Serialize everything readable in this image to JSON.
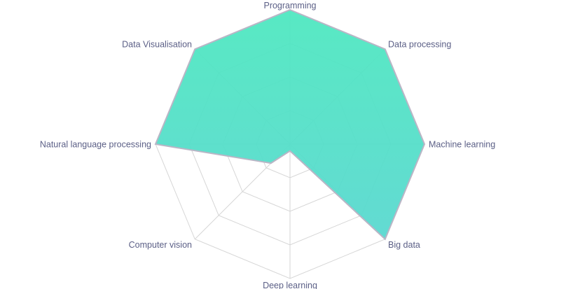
{
  "chart_data": {
    "type": "radar",
    "title": "",
    "categories": [
      "Programming",
      "Data processing",
      "Machine learning",
      "Big data",
      "Deep learning",
      "Computer vision",
      "Natural language processing",
      "Data Visualisation"
    ],
    "series": [
      {
        "values": [
          100,
          100,
          100,
          100,
          5,
          20,
          100,
          100
        ],
        "color_top": "#4fe8c0",
        "color_bottom": "#5ad8d0"
      }
    ],
    "range": [
      0,
      100
    ],
    "grid_rings": 4,
    "grid": true,
    "legend": "none"
  }
}
